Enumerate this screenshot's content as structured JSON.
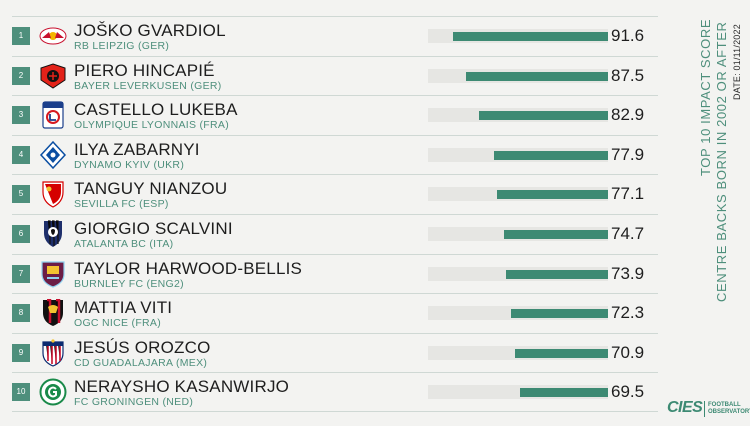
{
  "title": "TOP 10 IMPACT SCORE",
  "subtitle": "CENTRE BACKS BORN IN 2002 OR AFTER",
  "date": "DATE: 01/11/2022",
  "logo": {
    "main": "CIES",
    "sub": "FOOTBALL OBSERVATORY"
  },
  "colors": {
    "accent": "#3d8a73",
    "rank_bg": "#4e8f7c",
    "track": "#e6e6e3",
    "club_text": "#4e8f7c"
  },
  "chart_data": {
    "type": "bar",
    "orientation": "horizontal",
    "title": "TOP 10 IMPACT SCORE",
    "subtitle": "CENTRE BACKS BORN IN 2002 OR AFTER",
    "categories": [
      "JOŠKO GVARDIOL",
      "PIERO HINCAPIÉ",
      "CASTELLO LUKEBA",
      "ILYA ZABARNYI",
      "TANGUY NIANZOU",
      "GIORGIO SCALVINI",
      "TAYLOR HARWOOD-BELLIS",
      "MATTIA VITI",
      "JESÚS OROZCO",
      "NERAYSHO KASANWIRJO"
    ],
    "values": [
      91.6,
      87.5,
      82.9,
      77.9,
      77.1,
      74.7,
      73.9,
      72.3,
      70.9,
      69.5
    ],
    "xlim": [
      0,
      100
    ],
    "grid": false
  },
  "rows": [
    {
      "rank": "1",
      "name": "JOŠKO GVARDIOL",
      "club": "RB LEIPZIG (GER)",
      "score": "91.6",
      "value": 91.6,
      "crest": "rb-leipzig-crest-icon"
    },
    {
      "rank": "2",
      "name": "PIERO HINCAPIÉ",
      "club": "BAYER LEVERKUSEN (GER)",
      "score": "87.5",
      "value": 87.5,
      "crest": "bayer-leverkusen-crest-icon"
    },
    {
      "rank": "3",
      "name": "CASTELLO LUKEBA",
      "club": "OLYMPIQUE LYONNAIS (FRA)",
      "score": "82.9",
      "value": 82.9,
      "crest": "olympique-lyonnais-crest-icon"
    },
    {
      "rank": "4",
      "name": "ILYA ZABARNYI",
      "club": "DYNAMO KYIV (UKR)",
      "score": "77.9",
      "value": 77.9,
      "crest": "dynamo-kyiv-crest-icon"
    },
    {
      "rank": "5",
      "name": "TANGUY NIANZOU",
      "club": "SEVILLA FC (ESP)",
      "score": "77.1",
      "value": 77.1,
      "crest": "sevilla-crest-icon"
    },
    {
      "rank": "6",
      "name": "GIORGIO SCALVINI",
      "club": "ATALANTA BC (ITA)",
      "score": "74.7",
      "value": 74.7,
      "crest": "atalanta-crest-icon"
    },
    {
      "rank": "7",
      "name": "TAYLOR HARWOOD-BELLIS",
      "club": "BURNLEY FC (ENG2)",
      "score": "73.9",
      "value": 73.9,
      "crest": "burnley-crest-icon"
    },
    {
      "rank": "8",
      "name": "MATTIA VITI",
      "club": "OGC NICE (FRA)",
      "score": "72.3",
      "value": 72.3,
      "crest": "ogc-nice-crest-icon"
    },
    {
      "rank": "9",
      "name": "JESÚS OROZCO",
      "club": "CD GUADALAJARA (MEX)",
      "score": "70.9",
      "value": 70.9,
      "crest": "guadalajara-crest-icon"
    },
    {
      "rank": "10",
      "name": "NERAYSHO KASANWIRJO",
      "club": "FC GRONINGEN (NED)",
      "score": "69.5",
      "value": 69.5,
      "crest": "groningen-crest-icon"
    }
  ]
}
